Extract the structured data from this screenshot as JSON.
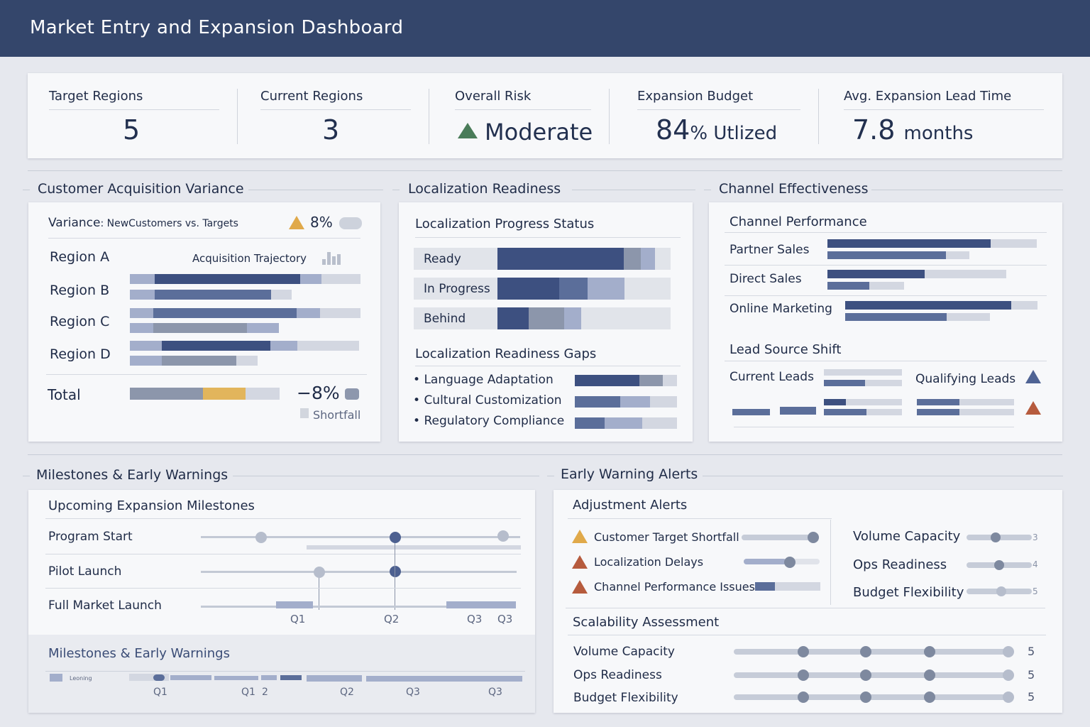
{
  "header": {
    "title": "Market Entry and Expansion Dashboard"
  },
  "kpis": {
    "target_regions": {
      "label": "Target Regions",
      "value": "5"
    },
    "current_regions": {
      "label": "Current Regions",
      "value": "3"
    },
    "overall_risk": {
      "label": "Overall Risk",
      "value": "Moderate",
      "icon": "warning-triangle-icon",
      "color": "#4a7c59"
    },
    "expansion_budget": {
      "label": "Expansion Budget",
      "value": "84",
      "unit": "% Utlized"
    },
    "lead_time": {
      "label": "Avg. Expansion Lead Time",
      "value": "7.8",
      "unit": "months"
    }
  },
  "sections": {
    "acquisition": "Customer Acquisition Variance",
    "localization": "Localization Readiness",
    "channel": "Channel Effectiveness",
    "milestones": "Milestones & Early Warnings",
    "alerts": "Early Warning Alerts"
  },
  "acquisition": {
    "variance_label": "Variance",
    "variance_sub": ": NewCustomers vs. Targets",
    "variance_value": "8%",
    "trajectory_label": "Acquisition Trajectory",
    "regions": [
      "Region A",
      "Region B",
      "Region C",
      "Region D"
    ],
    "total_label": "Total",
    "total_value": "−8%",
    "shortfall_label": "Shortfall"
  },
  "localization": {
    "progress_title": "Localization Progress Status",
    "statuses": [
      "Ready",
      "In Progress",
      "Behind"
    ],
    "gaps_title": "Localization Readiness Gaps",
    "gaps": [
      "Language Adaptation",
      "Cultural Customization",
      "Regulatory Compliance"
    ]
  },
  "channel": {
    "performance_title": "Channel Performance",
    "channels": [
      "Partner Sales",
      "Direct Sales",
      "Online Marketing"
    ],
    "lead_shift_title": "Lead Source Shift",
    "current_leads": "Current Leads",
    "qualifying_leads": "Qualifying Leads"
  },
  "milestones": {
    "title": "Upcoming Expansion Milestones",
    "items": [
      "Program Start",
      "Pilot Launch",
      "Full Market Launch"
    ],
    "quarters": [
      "Q1",
      "Q2",
      "Q3",
      "Q3"
    ],
    "sub_title": "Milestones & Early Warnings",
    "legend_small": "Leoning",
    "sub_quarters": [
      "Q1",
      "Q1",
      "2",
      "Q2",
      "Q3",
      "Q3"
    ]
  },
  "alerts": {
    "adjustment_title": "Adjustment Alerts",
    "items": [
      "Customer Target Shortfall",
      "Localization Delays",
      "Channel Performance Issues"
    ],
    "capacity_items": [
      "Volume Capacity",
      "Ops Readiness",
      "Budget Flexibility"
    ],
    "capacity_values": [
      "3",
      "4",
      "5"
    ],
    "scalability_title": "Scalability Assessment",
    "scalability_items": [
      "Volume Capacity",
      "Ops Readiness",
      "Budget Flexibility"
    ],
    "scalability_values": [
      "5",
      "5",
      "5"
    ]
  },
  "colors": {
    "header": "#34466b",
    "accent_dark": "#3d5080",
    "warning_yellow": "#e0a94a",
    "warning_red": "#b65b3d",
    "shortfall_gold": "#e2b55c"
  }
}
